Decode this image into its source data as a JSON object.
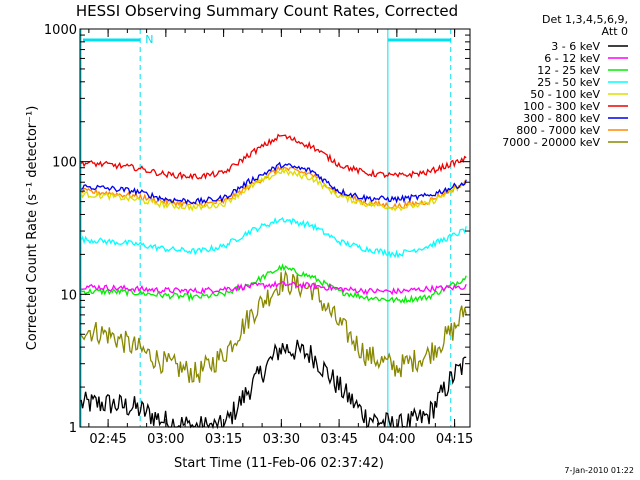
{
  "chart_data": {
    "type": "line",
    "title": "HESSI Observing Summary Count Rates, Corrected",
    "xlabel": "Start Time (11-Feb-06 02:37:42)",
    "ylabel": "Corrected Count Rate (s⁻¹ detector⁻¹)",
    "y_scale": "log",
    "ylim": [
      1,
      1000
    ],
    "xlim": [
      "02:37:42",
      "04:19:00"
    ],
    "x_ticks": [
      "02:45",
      "03:00",
      "03:15",
      "03:30",
      "03:45",
      "04:00",
      "04:15"
    ],
    "y_ticks": [
      "1",
      "10",
      "100",
      "1000"
    ],
    "legend_title": [
      "Det 1,3,4,5,6,9,",
      "Att 0"
    ],
    "legend_position": "right, outside",
    "markers": {
      "night_start": "02:37:42",
      "saa_end": "02:53:20",
      "night_end": "03:57:40",
      "saa_start": "04:14:00",
      "top_bar_label": "N"
    },
    "colors": {
      "accent_marker": "#00e0ee",
      "black": "#000000",
      "magenta": "#ff00ff",
      "green": "#00ee00",
      "cyan": "#00ffff",
      "yellow": "#dddd00",
      "red": "#ee0000",
      "blue": "#0000ee",
      "orange": "#ff8800",
      "olive": "#888800"
    },
    "x_hours": [
      "02:38",
      "02:45",
      "02:52",
      "03:00",
      "03:08",
      "03:15",
      "03:22",
      "03:30",
      "03:38",
      "03:45",
      "03:52",
      "04:00",
      "04:08",
      "04:15",
      "04:18"
    ],
    "series": [
      {
        "name": "3 - 6 keV",
        "color": "#000000",
        "values": [
          1.5,
          1.5,
          1.4,
          1.1,
          1.0,
          1.0,
          2.0,
          4.0,
          3.5,
          2.0,
          1.2,
          1.0,
          1.2,
          2.5,
          3.0
        ]
      },
      {
        "name": "6 - 12 keV",
        "color": "#ff00ff",
        "values": [
          11.5,
          11.2,
          11.0,
          10.7,
          10.6,
          11.0,
          11.5,
          11.9,
          11.6,
          11.0,
          10.6,
          10.5,
          11.0,
          11.2,
          11.5
        ]
      },
      {
        "name": "12 - 25 keV",
        "color": "#00ee00",
        "values": [
          10.5,
          10.5,
          10.3,
          9.8,
          9.5,
          10.0,
          12.0,
          16.0,
          13.5,
          10.5,
          9.5,
          9.0,
          9.5,
          12.0,
          13.5
        ]
      },
      {
        "name": "25 - 50 keV",
        "color": "#00ffff",
        "values": [
          26,
          25,
          24,
          22,
          21,
          23,
          30,
          37,
          33,
          25,
          22,
          20,
          23,
          28,
          31
        ]
      },
      {
        "name": "50 - 100 keV",
        "color": "#dddd00",
        "values": [
          57,
          55,
          52,
          47,
          45,
          48,
          65,
          85,
          75,
          55,
          48,
          45,
          48,
          62,
          68
        ]
      },
      {
        "name": "100 - 300 keV",
        "color": "#ee0000",
        "values": [
          98,
          95,
          90,
          80,
          77,
          82,
          115,
          158,
          130,
          95,
          82,
          78,
          83,
          98,
          105
        ]
      },
      {
        "name": "300 - 800 keV",
        "color": "#0000ee",
        "values": [
          65,
          63,
          60,
          52,
          50,
          53,
          72,
          95,
          85,
          60,
          53,
          52,
          55,
          65,
          70
        ]
      },
      {
        "name": "800 - 7000 keV",
        "color": "#ff8800",
        "values": [
          60,
          58,
          55,
          50,
          47,
          50,
          66,
          90,
          80,
          58,
          49,
          46,
          50,
          63,
          69
        ]
      },
      {
        "name": "7000 - 20000 keV",
        "color": "#888800",
        "values": [
          5.5,
          5.0,
          4.0,
          3.0,
          2.5,
          3.5,
          7.0,
          12.5,
          11.0,
          6.0,
          3.5,
          2.8,
          3.5,
          5.5,
          8.0
        ]
      }
    ],
    "grid": false,
    "footer_stamp": "7-Jan-2010 01:22"
  }
}
